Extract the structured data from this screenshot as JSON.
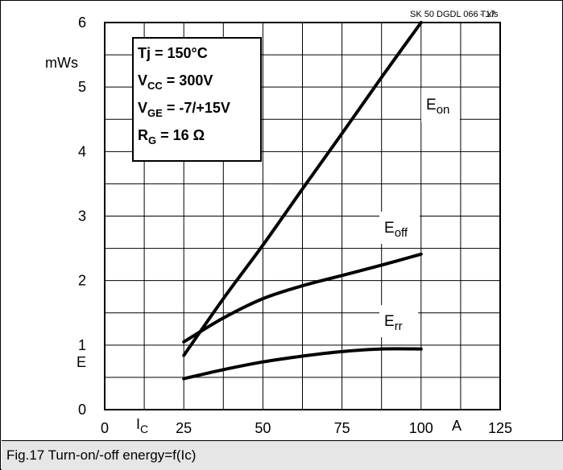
{
  "chart_data": {
    "type": "line",
    "file_label": "SK 50 DGDL 066 T.xls",
    "page_label": "- 17",
    "ylabel_unit": "mWs",
    "ylabel_symbol": "E",
    "xlabel_symbol": "I",
    "xlabel_symbol_sub": "C",
    "xlabel_unit": "A",
    "xlim": [
      0,
      125
    ],
    "ylim": [
      0,
      6
    ],
    "x_ticks": [
      0,
      25,
      50,
      75,
      100,
      125
    ],
    "y_ticks": [
      0,
      1,
      2,
      3,
      4,
      5,
      6
    ],
    "grid": true,
    "conditions": [
      {
        "main": "Tj = 150°C",
        "sub": "",
        "rest": ""
      },
      {
        "main": "V",
        "sub": "CC",
        "rest": " = 300V"
      },
      {
        "main": "V",
        "sub": "GE",
        "rest": " = -7/+15V"
      },
      {
        "main": "R",
        "sub": "G",
        "rest": " = 16 Ω"
      }
    ],
    "series": [
      {
        "name": "E",
        "sub": "on",
        "x": [
          25,
          37.5,
          50,
          62.5,
          75,
          87.5,
          100
        ],
        "y": [
          0.84,
          1.72,
          2.55,
          3.42,
          4.28,
          5.15,
          6.0
        ]
      },
      {
        "name": "E",
        "sub": "off",
        "x": [
          25,
          37.5,
          50,
          62.5,
          75,
          87.5,
          100
        ],
        "y": [
          1.05,
          1.42,
          1.72,
          1.92,
          2.08,
          2.24,
          2.41
        ]
      },
      {
        "name": "E",
        "sub": "rr",
        "x": [
          25,
          37.5,
          50,
          62.5,
          75,
          87.5,
          100
        ],
        "y": [
          0.48,
          0.62,
          0.74,
          0.83,
          0.9,
          0.94,
          0.94
        ]
      }
    ]
  },
  "caption": "Fig.17 Turn-on/-off energy=f(Ic)"
}
